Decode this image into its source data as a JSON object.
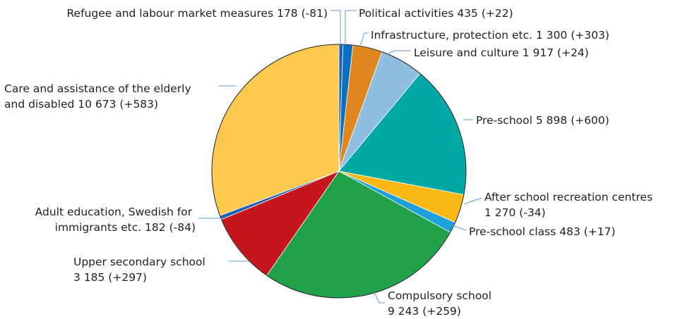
{
  "chart_data": {
    "type": "pie",
    "start_angle_deg": 0,
    "direction": "clockwise",
    "slices": [
      {
        "name": "Refugee and labour market measures",
        "value": 178,
        "change": "(-81)",
        "color": "#1f5fb4",
        "label": "Refugee and labour market measures 178 (-81)"
      },
      {
        "name": "Political activities",
        "value": 435,
        "change": "(+22)",
        "color": "#0a6fbf",
        "label": "Political activities 435 (+22)"
      },
      {
        "name": "Infrastructure, protection etc.",
        "value": 1300,
        "change": "(+303)",
        "color": "#e0861e",
        "label": "Infrastructure, protection etc. 1 300 (+303)"
      },
      {
        "name": "Leisure and culture",
        "value": 1917,
        "change": "(+24)",
        "color": "#8fbfe0",
        "label": "Leisure and culture 1 917 (+24)"
      },
      {
        "name": "Pre-school",
        "value": 5898,
        "change": "(+600)",
        "color": "#00a9a5",
        "label": "Pre-school 5 898 (+600)"
      },
      {
        "name": "After school recreation centres",
        "value": 1270,
        "change": "(-34)",
        "color": "#fbb918",
        "label_lines": [
          "After school recreation centres",
          "1 270 (-34)"
        ]
      },
      {
        "name": "Pre-school class",
        "value": 483,
        "change": "(+17)",
        "color": "#1ea0dc",
        "label": "Pre-school class 483 (+17)"
      },
      {
        "name": "Compulsory school",
        "value": 9243,
        "change": "(+259)",
        "color": "#21a24a",
        "label_lines": [
          "Compulsory school",
          "9 243 (+259)"
        ]
      },
      {
        "name": "Upper secondary school",
        "value": 3185,
        "change": "(+297)",
        "color": "#c4161c",
        "label_lines": [
          "Upper secondary school",
          "3 185 (+297)"
        ]
      },
      {
        "name": "Adult education, Swedish for immigrants etc.",
        "value": 182,
        "change": "(-84)",
        "color": "#1f5fb4",
        "label_lines": [
          "Adult education, Swedish for",
          "immigrants etc. 182 (-84)"
        ]
      },
      {
        "name": "Care and assistance of the elderly and disabled",
        "value": 10673,
        "change": "(+583)",
        "color": "#fdc94e",
        "label_lines": [
          "Care and assistance of the elderly",
          "and disabled 10 673 (+583)"
        ]
      }
    ]
  }
}
